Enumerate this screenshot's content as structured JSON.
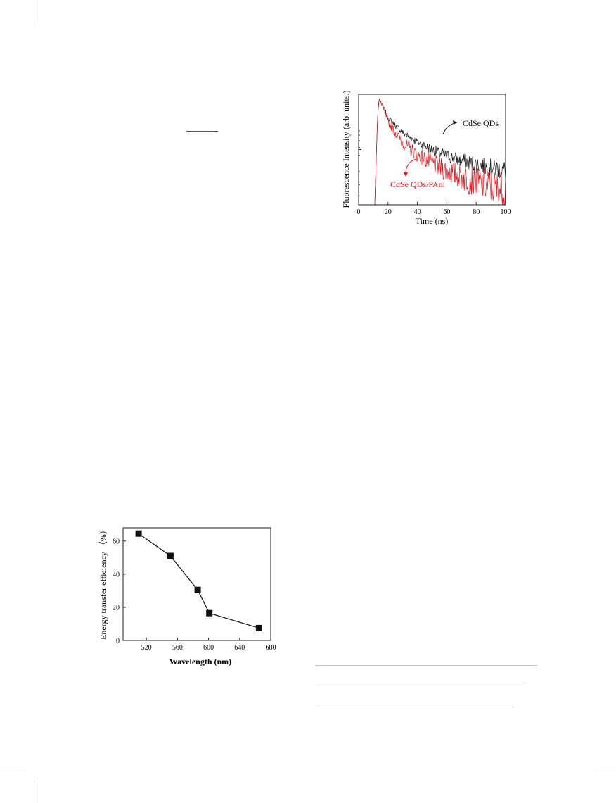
{
  "chart_data": [
    {
      "type": "line",
      "xlabel": "Time (ns)",
      "ylabel": "Fluorescence Intensity (arb. units.)",
      "xlim": [
        0,
        100
      ],
      "y_scale": "log",
      "xticks": [
        "0",
        "20",
        "40",
        "60",
        "80",
        "100"
      ],
      "series": [
        {
          "name": "CdSe QDs",
          "color": "#1a1a1a",
          "x": [
            11,
            12,
            13,
            14,
            20,
            30,
            40,
            50,
            60,
            70,
            80,
            90,
            100
          ],
          "y": [
            0.0,
            0.45,
            0.85,
            1.0,
            0.82,
            0.68,
            0.59,
            0.52,
            0.46,
            0.42,
            0.38,
            0.35,
            0.33
          ]
        },
        {
          "name": "CdSe QDs/PAni",
          "color": "#e8141b",
          "x": [
            11,
            12,
            13,
            14,
            20,
            30,
            40,
            50,
            60,
            70,
            80,
            90,
            100
          ],
          "y": [
            0.0,
            0.45,
            0.85,
            1.0,
            0.78,
            0.58,
            0.47,
            0.39,
            0.32,
            0.26,
            0.21,
            0.17,
            0.14
          ]
        }
      ],
      "annotations": [
        "CdSe QDs",
        "CdSe QDs/PAni"
      ]
    },
    {
      "type": "line",
      "xlabel": "Wavelength (nm)",
      "ylabel": "Energy transfer efficiency （%）",
      "xlim": [
        490,
        680
      ],
      "ylim": [
        0,
        68
      ],
      "xticks": [
        "520",
        "560",
        "600",
        "640",
        "680"
      ],
      "yticks": [
        "0",
        "20",
        "40",
        "60"
      ],
      "series": [
        {
          "x": [
            510,
            551,
            586,
            601,
            665
          ],
          "y": [
            64.5,
            51,
            30.5,
            16.5,
            7.5
          ]
        }
      ],
      "marker": "square",
      "color": "#111111"
    }
  ]
}
